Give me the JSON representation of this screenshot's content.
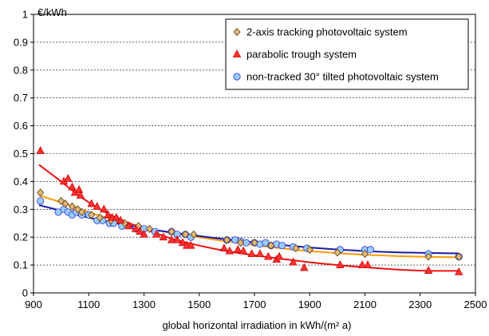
{
  "chart_data": {
    "type": "scatter",
    "ylabel": "€/kWh",
    "xlabel": "global horizontal irradiation in kWh/(m² a)",
    "xlim": [
      900,
      2500
    ],
    "ylim": [
      0,
      1
    ],
    "xticks": [
      "900",
      "1100",
      "1300",
      "1500",
      "1700",
      "1900",
      "2100",
      "2300",
      "2500"
    ],
    "yticks": [
      "0",
      "0.1",
      "0.2",
      "0.3",
      "0.4",
      "0.5",
      "0.6",
      "0.7",
      "0.8",
      "0.9",
      "1"
    ],
    "grid": true,
    "legend_position": "top-right",
    "series": [
      {
        "name": "2-axis tracking photovoltaic system",
        "marker": "diamond",
        "fill": "#e0b878",
        "stroke": "#5a3a10",
        "trend_color": "#ff9900",
        "points": [
          [
            925,
            0.36
          ],
          [
            1000,
            0.33
          ],
          [
            1015,
            0.32
          ],
          [
            1040,
            0.31
          ],
          [
            1060,
            0.3
          ],
          [
            1075,
            0.29
          ],
          [
            1110,
            0.28
          ],
          [
            1140,
            0.27
          ],
          [
            1180,
            0.26
          ],
          [
            1230,
            0.25
          ],
          [
            1280,
            0.24
          ],
          [
            1320,
            0.23
          ],
          [
            1400,
            0.22
          ],
          [
            1450,
            0.21
          ],
          [
            1480,
            0.21
          ],
          [
            1600,
            0.19
          ],
          [
            1650,
            0.18
          ],
          [
            1700,
            0.18
          ],
          [
            1760,
            0.17
          ],
          [
            1850,
            0.16
          ],
          [
            1900,
            0.155
          ],
          [
            2000,
            0.145
          ],
          [
            2100,
            0.14
          ],
          [
            2330,
            0.13
          ],
          [
            2440,
            0.13
          ]
        ],
        "trend": [
          [
            920,
            0.35
          ],
          [
            1000,
            0.325
          ],
          [
            1100,
            0.29
          ],
          [
            1200,
            0.26
          ],
          [
            1300,
            0.235
          ],
          [
            1400,
            0.215
          ],
          [
            1500,
            0.2
          ],
          [
            1600,
            0.185
          ],
          [
            1700,
            0.172
          ],
          [
            1800,
            0.16
          ],
          [
            1900,
            0.15
          ],
          [
            2000,
            0.143
          ],
          [
            2100,
            0.137
          ],
          [
            2200,
            0.133
          ],
          [
            2300,
            0.13
          ],
          [
            2440,
            0.128
          ]
        ]
      },
      {
        "name": "parabolic trough system",
        "marker": "triangle",
        "fill": "#ff3333",
        "stroke": "#cc0000",
        "trend_color": "#ee1111",
        "points": [
          [
            925,
            0.51
          ],
          [
            1010,
            0.4
          ],
          [
            1025,
            0.41
          ],
          [
            1040,
            0.38
          ],
          [
            1050,
            0.36
          ],
          [
            1065,
            0.37
          ],
          [
            1070,
            0.35
          ],
          [
            1110,
            0.32
          ],
          [
            1130,
            0.31
          ],
          [
            1155,
            0.3
          ],
          [
            1170,
            0.28
          ],
          [
            1185,
            0.27
          ],
          [
            1200,
            0.27
          ],
          [
            1215,
            0.26
          ],
          [
            1245,
            0.24
          ],
          [
            1270,
            0.23
          ],
          [
            1285,
            0.22
          ],
          [
            1300,
            0.21
          ],
          [
            1345,
            0.21
          ],
          [
            1370,
            0.2
          ],
          [
            1400,
            0.19
          ],
          [
            1420,
            0.19
          ],
          [
            1440,
            0.18
          ],
          [
            1455,
            0.17
          ],
          [
            1470,
            0.17
          ],
          [
            1590,
            0.16
          ],
          [
            1610,
            0.15
          ],
          [
            1640,
            0.155
          ],
          [
            1660,
            0.15
          ],
          [
            1690,
            0.14
          ],
          [
            1720,
            0.14
          ],
          [
            1750,
            0.13
          ],
          [
            1780,
            0.12
          ],
          [
            1790,
            0.13
          ],
          [
            1840,
            0.11
          ],
          [
            1880,
            0.09
          ],
          [
            2010,
            0.1
          ],
          [
            2090,
            0.1
          ],
          [
            2110,
            0.1
          ],
          [
            2330,
            0.08
          ],
          [
            2440,
            0.075
          ]
        ],
        "trend": [
          [
            920,
            0.46
          ],
          [
            1000,
            0.4
          ],
          [
            1050,
            0.36
          ],
          [
            1100,
            0.325
          ],
          [
            1150,
            0.295
          ],
          [
            1200,
            0.27
          ],
          [
            1300,
            0.23
          ],
          [
            1400,
            0.195
          ],
          [
            1500,
            0.17
          ],
          [
            1600,
            0.15
          ],
          [
            1700,
            0.135
          ],
          [
            1800,
            0.122
          ],
          [
            1900,
            0.11
          ],
          [
            2000,
            0.1
          ],
          [
            2100,
            0.092
          ],
          [
            2200,
            0.085
          ],
          [
            2300,
            0.08
          ],
          [
            2440,
            0.079
          ]
        ]
      },
      {
        "name": "non-tracked 30° tilted photovoltaic system",
        "marker": "circle",
        "fill": "#99ccff",
        "stroke": "#3333cc",
        "trend_color": "#1a1aa6",
        "points": [
          [
            925,
            0.33
          ],
          [
            990,
            0.29
          ],
          [
            1010,
            0.3
          ],
          [
            1025,
            0.29
          ],
          [
            1040,
            0.28
          ],
          [
            1055,
            0.29
          ],
          [
            1075,
            0.28
          ],
          [
            1100,
            0.28
          ],
          [
            1130,
            0.26
          ],
          [
            1150,
            0.26
          ],
          [
            1175,
            0.25
          ],
          [
            1190,
            0.25
          ],
          [
            1220,
            0.24
          ],
          [
            1270,
            0.23
          ],
          [
            1300,
            0.23
          ],
          [
            1340,
            0.22
          ],
          [
            1400,
            0.22
          ],
          [
            1420,
            0.21
          ],
          [
            1450,
            0.21
          ],
          [
            1470,
            0.2
          ],
          [
            1600,
            0.19
          ],
          [
            1630,
            0.19
          ],
          [
            1650,
            0.185
          ],
          [
            1670,
            0.18
          ],
          [
            1700,
            0.18
          ],
          [
            1720,
            0.175
          ],
          [
            1740,
            0.18
          ],
          [
            1760,
            0.17
          ],
          [
            1780,
            0.175
          ],
          [
            1800,
            0.17
          ],
          [
            1840,
            0.165
          ],
          [
            1890,
            0.16
          ],
          [
            2010,
            0.155
          ],
          [
            2100,
            0.155
          ],
          [
            2120,
            0.155
          ],
          [
            2330,
            0.14
          ],
          [
            2440,
            0.13
          ]
        ],
        "trend": [
          [
            920,
            0.315
          ],
          [
            1000,
            0.295
          ],
          [
            1100,
            0.27
          ],
          [
            1200,
            0.25
          ],
          [
            1300,
            0.232
          ],
          [
            1400,
            0.217
          ],
          [
            1500,
            0.204
          ],
          [
            1600,
            0.192
          ],
          [
            1700,
            0.181
          ],
          [
            1800,
            0.172
          ],
          [
            1900,
            0.163
          ],
          [
            2000,
            0.156
          ],
          [
            2100,
            0.15
          ],
          [
            2200,
            0.146
          ],
          [
            2300,
            0.144
          ],
          [
            2440,
            0.142
          ]
        ]
      }
    ]
  }
}
